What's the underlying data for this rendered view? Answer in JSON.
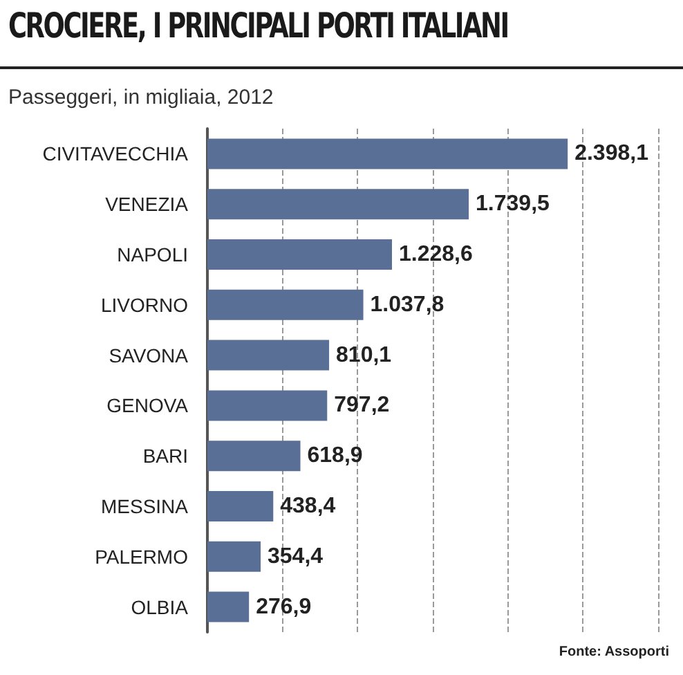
{
  "chart_data": {
    "type": "bar",
    "orientation": "horizontal",
    "title": "CROCIERE, I PRINCIPALI PORTI ITALIANI",
    "subtitle": "Passeggeri, in migliaia, 2012",
    "categories": [
      "CIVITAVECCHIA",
      "VENEZIA",
      "NAPOLI",
      "LIVORNO",
      "SAVONA",
      "GENOVA",
      "BARI",
      "MESSINA",
      "PALERMO",
      "OLBIA"
    ],
    "values": [
      2398.1,
      1739.5,
      1228.6,
      1037.8,
      810.1,
      797.2,
      618.9,
      438.4,
      354.4,
      276.9
    ],
    "value_labels": [
      "2.398,1",
      "1.739,5",
      "1.228,6",
      "1.037,8",
      "810,1",
      "797,2",
      "618,9",
      "438,4",
      "354,4",
      "276,9"
    ],
    "color": "#5a6f96",
    "xlim": [
      0,
      3000
    ],
    "xticks": [
      {
        "value": 0,
        "label": null
      },
      {
        "value": 500,
        "label": null
      },
      {
        "value": 1000,
        "label": null
      },
      {
        "value": 1500,
        "label": null
      },
      {
        "value": 2000,
        "label": null
      },
      {
        "value": 2500,
        "label": null
      },
      {
        "value": 3000,
        "label": null
      }
    ],
    "grid": "x",
    "tick_labels": "y",
    "annotations": [
      "Fonte: Assoporti"
    ]
  }
}
